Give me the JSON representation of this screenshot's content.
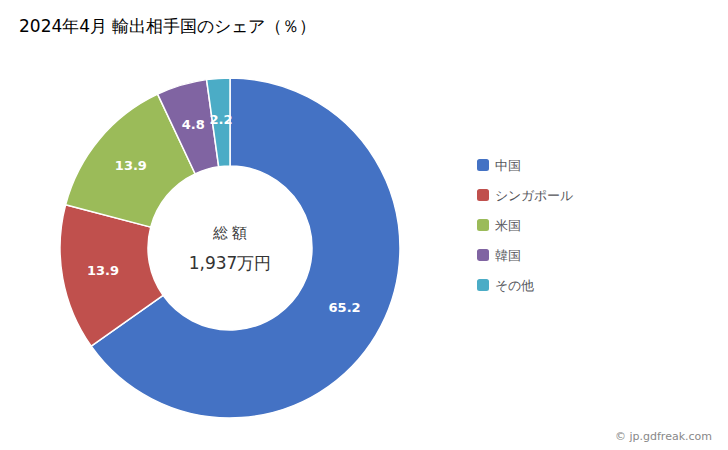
{
  "chart_data": {
    "type": "donut",
    "title": "2024年4月 輸出相手国のシェア（％）",
    "categories": [
      "中国",
      "シンガポール",
      "米国",
      "韓国",
      "その他"
    ],
    "values": [
      65.2,
      13.9,
      13.9,
      4.8,
      2.2
    ],
    "colors": [
      "#4472C4",
      "#C0504D",
      "#9BBB59",
      "#8064A2",
      "#4BACC6"
    ],
    "data_labels": true,
    "legend": "right",
    "annotations": [
      "総 額",
      "1,937万円",
      "© jp.gdfreak.com"
    ]
  }
}
